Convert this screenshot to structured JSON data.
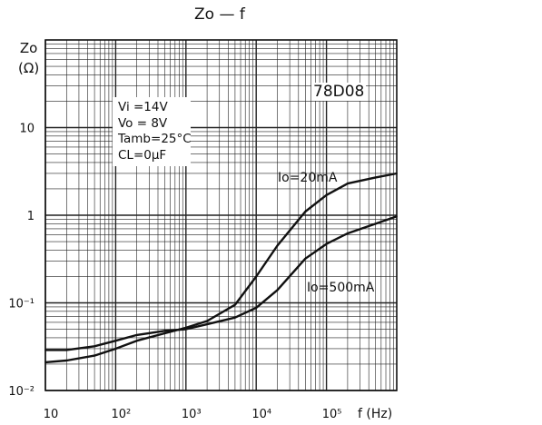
{
  "chart_data": {
    "type": "line",
    "title": "Zo — f",
    "ylabel": "Zo",
    "yunit": "(Ω)",
    "xlabel": "f",
    "xunit": "(Hz)",
    "xscale": "log",
    "yscale": "log",
    "xlim": [
      10,
      1000000
    ],
    "ylim": [
      0.01,
      100
    ],
    "grid": true,
    "xticks": [
      {
        "value": 10,
        "label": "10"
      },
      {
        "value": 100,
        "label": "10²"
      },
      {
        "value": 1000,
        "label": "10³"
      },
      {
        "value": 10000,
        "label": "10⁴"
      },
      {
        "value": 100000,
        "label": "10⁵"
      }
    ],
    "yticks": [
      {
        "value": 10,
        "label": "10"
      },
      {
        "value": 1,
        "label": "1"
      },
      {
        "value": 0.1,
        "label": "10⁻¹"
      },
      {
        "value": 0.01,
        "label": "10⁻²"
      }
    ],
    "device_label": "78D08",
    "conditions": [
      "Vi =14V",
      "Vo = 8V",
      "Tamb=25°C",
      "CL=0μF"
    ],
    "series": [
      {
        "name": "Io=20mA",
        "x": [
          10,
          20,
          50,
          100,
          200,
          500,
          1000,
          2000,
          5000,
          10000,
          20000,
          50000,
          100000,
          200000,
          500000,
          1000000
        ],
        "y": [
          0.021,
          0.022,
          0.025,
          0.03,
          0.037,
          0.045,
          0.052,
          0.062,
          0.095,
          0.2,
          0.45,
          1.1,
          1.7,
          2.3,
          2.7,
          3.0
        ]
      },
      {
        "name": "Io=500mA",
        "x": [
          10,
          20,
          50,
          100,
          200,
          500,
          1000,
          2000,
          5000,
          10000,
          20000,
          50000,
          100000,
          200000,
          500000,
          1000000
        ],
        "y": [
          0.029,
          0.029,
          0.032,
          0.037,
          0.043,
          0.048,
          0.05,
          0.057,
          0.068,
          0.088,
          0.14,
          0.32,
          0.47,
          0.62,
          0.8,
          0.97
        ]
      }
    ]
  }
}
